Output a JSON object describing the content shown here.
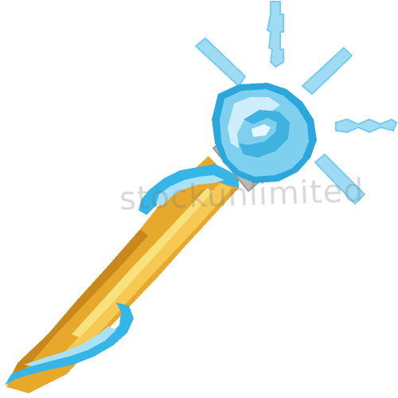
{
  "illustration": {
    "subject": "pixel-art-magic-wand",
    "watermark_text": "stockunlimited",
    "colors": {
      "background": "#ffffff",
      "handle_gold": "#e7a92c",
      "handle_gold_dark": "#c9891a",
      "handle_highlight": "#f9e27e",
      "handle_light": "#f5c954",
      "grip_blue": "#36b6e6",
      "grip_blue_light": "#a9e2f6",
      "collar_gray": "#b8b8b8",
      "gem_outline": "#2ca7db",
      "gem_fill": "#7fd0ef",
      "gem_light": "#cdeefa",
      "gem_dark": "#3fb2e0",
      "sparkle": "#9fdcf3"
    }
  }
}
